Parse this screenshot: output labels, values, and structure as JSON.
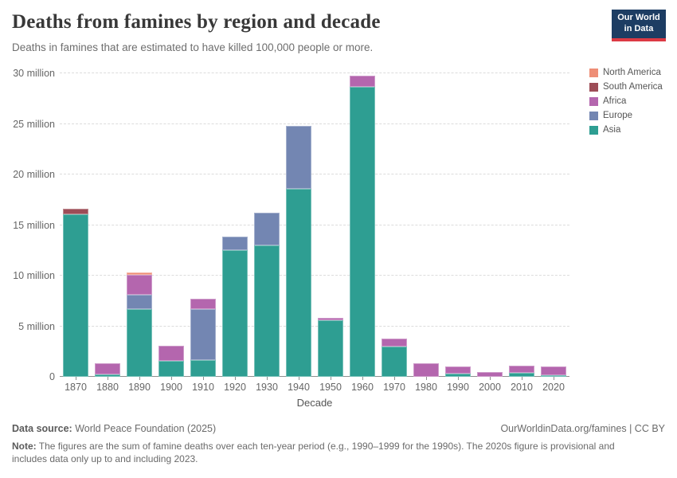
{
  "header": {
    "title": "Deaths from famines by region and decade",
    "subtitle": "Deaths in famines that are estimated to have killed 100,000 people or more.",
    "logo": {
      "line1": "Our World",
      "line2": "in Data",
      "bg_color": "#1d3d63",
      "accent_color": "#dc3a44"
    }
  },
  "legend": {
    "position": "top-right",
    "items": [
      {
        "label": "North America",
        "color": "#EE8E76"
      },
      {
        "label": "South America",
        "color": "#9D4D57"
      },
      {
        "label": "Africa",
        "color": "#B466AE"
      },
      {
        "label": "Europe",
        "color": "#7386B2"
      },
      {
        "label": "Asia",
        "color": "#2E9E92"
      }
    ]
  },
  "chart_data": {
    "type": "bar",
    "stacked": true,
    "title": "Deaths from famines by region and decade",
    "xlabel": "Decade",
    "ylabel": "",
    "values_unit": "millions of deaths",
    "ylim_millions": [
      0,
      30
    ],
    "grid": "dashed-horizontal",
    "legend_position": "top-right",
    "categories": [
      "1870",
      "1880",
      "1890",
      "1900",
      "1910",
      "1920",
      "1930",
      "1940",
      "1950",
      "1960",
      "1970",
      "1980",
      "1990",
      "2000",
      "2010",
      "2020"
    ],
    "series": [
      {
        "name": "Asia",
        "color": "#2E9E92",
        "values": [
          16.1,
          0.2,
          6.7,
          1.6,
          1.65,
          12.5,
          13.0,
          18.6,
          5.6,
          28.7,
          3.0,
          0,
          0.35,
          0,
          0.4,
          0.15
        ]
      },
      {
        "name": "Europe",
        "color": "#7386B2",
        "values": [
          0,
          0,
          1.45,
          0,
          5.05,
          1.35,
          3.2,
          6.2,
          0,
          0,
          0,
          0,
          0,
          0,
          0,
          0
        ]
      },
      {
        "name": "Africa",
        "color": "#B466AE",
        "values": [
          0,
          1.15,
          1.9,
          1.5,
          1.05,
          0,
          0,
          0,
          0.2,
          1.05,
          0.8,
          1.35,
          0.7,
          0.5,
          0.7,
          0.85
        ]
      },
      {
        "name": "South America",
        "color": "#9D4D57",
        "values": [
          0.5,
          0,
          0,
          0,
          0,
          0,
          0,
          0,
          0,
          0,
          0,
          0,
          0,
          0,
          0,
          0
        ]
      },
      {
        "name": "North America",
        "color": "#EE8E76",
        "values": [
          0,
          0,
          0.25,
          0,
          0,
          0,
          0,
          0,
          0,
          0,
          0,
          0,
          0,
          0,
          0,
          0
        ]
      }
    ],
    "yticks": [
      {
        "value": 0,
        "label": "0"
      },
      {
        "value": 5,
        "label": "5 million"
      },
      {
        "value": 10,
        "label": "10 million"
      },
      {
        "value": 15,
        "label": "15 million"
      },
      {
        "value": 20,
        "label": "20 million"
      },
      {
        "value": 25,
        "label": "25 million"
      },
      {
        "value": 30,
        "label": "30 million"
      }
    ]
  },
  "footer": {
    "source_label": "Data source:",
    "source_value": " World Peace Foundation (2025)",
    "link": "OurWorldinData.org/famines | CC BY",
    "note_label": "Note:",
    "note_text": " The figures are the sum of famine deaths over each ten-year period (e.g., 1990–1999 for the 1990s). The 2020s figure is provisional and includes data only up to and including 2023."
  }
}
